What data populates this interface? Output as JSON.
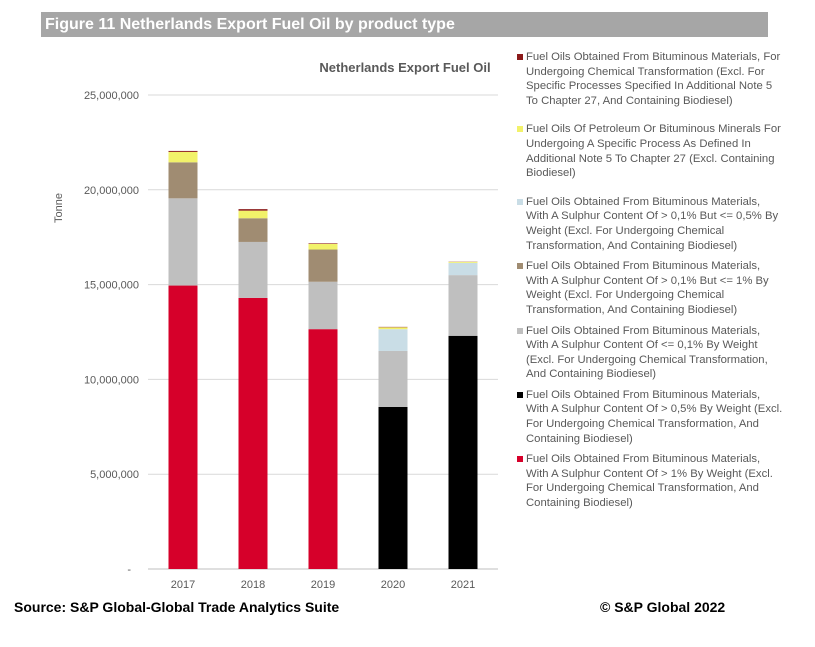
{
  "figure_header": "Figure 11 Netherlands Export Fuel Oil by product type",
  "source": "Source: S&P Global-Global Trade Analytics Suite",
  "copyright": "©  S&P Global 2022",
  "chart_data": {
    "type": "bar",
    "stacked": true,
    "title": "Netherlands Export Fuel Oil",
    "ylabel": "Tonne",
    "xlabel": "",
    "ylim": [
      0,
      25000000
    ],
    "yticks": [
      "-",
      "5,000,000",
      "10,000,000",
      "15,000,000",
      "20,000,000",
      "25,000,000"
    ],
    "categories": [
      "2017",
      "2018",
      "2019",
      "2020",
      "2021"
    ],
    "series": [
      {
        "name": "Fuel Oils Obtained From Bituminous Materials, With A Sulphur Content Of > 1% By Weight (Excl. For Undergoing Chemical Transformation, And Containing Biodiesel)",
        "color": "#d6002a",
        "values": [
          14950000,
          14300000,
          12650000,
          0,
          0
        ]
      },
      {
        "name": "Fuel Oils Obtained From Bituminous Materials, With A Sulphur Content Of > 0,5% By Weight (Excl. For Undergoing Chemical Transformation, And Containing Biodiesel)",
        "color": "#000000",
        "values": [
          0,
          0,
          0,
          8550000,
          12300000
        ]
      },
      {
        "name": "Fuel Oils Obtained From Bituminous Materials, With A Sulphur Content Of <= 0,1% By Weight (Excl. For Undergoing Chemical Transformation, And Containing Biodiesel)",
        "color": "#bfbfbf",
        "values": [
          4600000,
          2950000,
          2500000,
          2950000,
          3200000
        ]
      },
      {
        "name": "Fuel Oils Obtained From Bituminous Materials, With A Sulphur Content Of > 0,1% But <= 1% By Weight (Excl. For Undergoing Chemical Transformation, And Containing Biodiesel)",
        "color": "#a08c72",
        "values": [
          1900000,
          1250000,
          1700000,
          0,
          0
        ]
      },
      {
        "name": "Fuel Oils Obtained From Bituminous Materials, With A Sulphur Content Of > 0,1% But <= 0,5% By Weight (Excl. For Undergoing Chemical Transformation, And Containing Biodiesel)",
        "color": "#c9dde6",
        "values": [
          0,
          0,
          0,
          1150000,
          650000
        ]
      },
      {
        "name": "Fuel Oils Of Petroleum Or Bituminous Minerals For Undergoing A Specific Process As Defined In Additional Note 5 To Chapter 27 (Excl. Containing Biodiesel)",
        "color": "#f2f26a",
        "values": [
          550000,
          400000,
          300000,
          100000,
          50000
        ]
      },
      {
        "name": "Fuel Oils Obtained From Bituminous Materials, For Undergoing Chemical Transformation (Excl. For Specific Processes Specified In Additional Note 5 To Chapter 27, And Containing Biodiesel)",
        "color": "#8b1a1a",
        "values": [
          50000,
          80000,
          30000,
          20000,
          10000
        ]
      }
    ],
    "legend": [
      {
        "color": "#8b1a1a",
        "text": "Fuel Oils Obtained From Bituminous Materials, For Undergoing Chemical Transformation (Excl. For Specific Processes Specified In Additional Note 5 To Chapter 27, And Containing Biodiesel)"
      },
      {
        "color": "#f2f26a",
        "text": "Fuel Oils Of Petroleum Or Bituminous Minerals For Undergoing A Specific Process As Defined In Additional Note 5 To Chapter 27 (Excl. Containing Biodiesel)"
      },
      {
        "color": "#c9dde6",
        "text": "Fuel Oils Obtained From Bituminous Materials, With A Sulphur Content Of > 0,1% But <= 0,5% By Weight (Excl. For Undergoing Chemical Transformation, And Containing Biodiesel)"
      },
      {
        "color": "#a08c72",
        "text": "Fuel Oils Obtained From Bituminous Materials, With A Sulphur Content Of > 0,1% But <= 1% By Weight (Excl. For Undergoing Chemical Transformation, And Containing Biodiesel)"
      },
      {
        "color": "#bfbfbf",
        "text": "Fuel Oils Obtained From Bituminous Materials, With A Sulphur Content Of <= 0,1% By Weight (Excl. For Undergoing Chemical Transformation, And Containing Biodiesel)"
      },
      {
        "color": "#000000",
        "text": "Fuel Oils Obtained From Bituminous Materials, With A Sulphur Content Of > 0,5% By Weight (Excl. For Undergoing Chemical Transformation, And Containing Biodiesel)"
      },
      {
        "color": "#d6002a",
        "text": "Fuel Oils Obtained From Bituminous Materials, With A Sulphur Content Of > 1% By Weight (Excl. For Undergoing Chemical Transformation, And Containing Biodiesel)"
      }
    ]
  }
}
